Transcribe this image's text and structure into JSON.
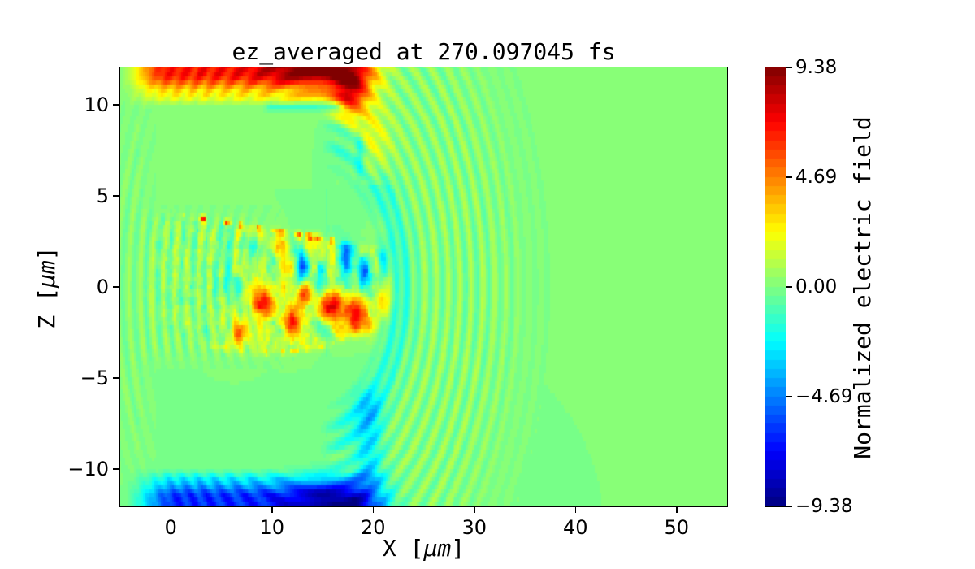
{
  "chart_data": {
    "type": "heatmap",
    "title": "ez_averaged at 270.097045 fs",
    "xlabel": "X [μm]",
    "ylabel": "Z [μm]",
    "xlabel_parts": {
      "pre": "X [",
      "unit": "μm",
      "post": "]"
    },
    "ylabel_parts": {
      "pre": "Z [",
      "unit": "μm",
      "post": "]"
    },
    "colorbar_label": "Normalized electric field",
    "colormap": "jet",
    "background_value": 0.0,
    "xlim": [
      -5,
      55
    ],
    "ylim": [
      -12.05,
      12.05
    ],
    "clim": [
      -9.38,
      9.38
    ],
    "x_ticks": [
      {
        "v": 0,
        "label": "0"
      },
      {
        "v": 10,
        "label": "10"
      },
      {
        "v": 20,
        "label": "20"
      },
      {
        "v": 30,
        "label": "30"
      },
      {
        "v": 40,
        "label": "40"
      },
      {
        "v": 50,
        "label": "50"
      }
    ],
    "y_ticks": [
      {
        "v": 10,
        "label": "10"
      },
      {
        "v": 5,
        "label": "5"
      },
      {
        "v": 0,
        "label": "0"
      },
      {
        "v": -5,
        "label": "−5"
      },
      {
        "v": -10,
        "label": "−10"
      }
    ],
    "colorbar_ticks": [
      {
        "v": 9.38,
        "label": "9.38"
      },
      {
        "v": 4.69,
        "label": "4.69"
      },
      {
        "v": 0,
        "label": "0.00"
      },
      {
        "v": -4.69,
        "label": "−4.69"
      },
      {
        "v": -9.38,
        "label": "−9.38"
      }
    ],
    "render": {
      "grid_step": 0.22,
      "quant_levels": 64,
      "colorbar_steps": 48,
      "features": {
        "wavefronts": {
          "cx": 14.5,
          "cz": 0,
          "wavelength": 1.15,
          "amp": 0.85,
          "pos_bias": 0.15,
          "fade_in": [
            5.5,
            8.5
          ],
          "fade_out": [
            16,
            23
          ],
          "quiet_x": [
            -4,
            -1.5,
            14.6,
            16.6
          ],
          "quiet_absz": [
            3.1,
            4.6,
            9.8,
            10.7
          ]
        },
        "inner_ring": {
          "r": 8.2,
          "sigma": 1.4,
          "amp": -1.5,
          "x_gate": [
            14,
            17.5
          ]
        },
        "top_lobe": {
          "edge_z": 10.15,
          "ramp_z": 11.7,
          "x_fade_in": [
            -5.5,
            -0.3
          ],
          "x_fade_out": [
            16.3,
            23
          ],
          "base": 6.6,
          "core": {
            "x": 13.5,
            "z": 12.8,
            "sx": 4.6,
            "sz": 1.8,
            "amp": 3.6
          },
          "droop": {
            "x": 17.8,
            "z": 10.6,
            "sx": 1.7,
            "sz": 1.5,
            "amp": 5.5
          },
          "tail": {
            "x": 19.8,
            "z": 7.8,
            "sx": 1.8,
            "sz": 2.2,
            "amp": 2.2
          },
          "ledge": {
            "z": 10.4,
            "sigma": 0.35,
            "amp": 1.5
          },
          "cyan_line": {
            "z": 9.9,
            "sigma": 0.22,
            "amp": -1.7,
            "x0": 9.5,
            "x1": 16.8
          },
          "cyan_wisp": {
            "x": 18.7,
            "z": 7.3,
            "sx": 0.45,
            "sz": 1.4,
            "amp": -2.2
          }
        },
        "bottom_lobe": {
          "edge_z": 10.05,
          "ramp_z": 11.6,
          "x_fade_in": [
            -5.2,
            0.8
          ],
          "x_fade_out": [
            17.8,
            23.5
          ],
          "base": -6.4,
          "core": {
            "x": 16.2,
            "z": -12.8,
            "sx": 4.4,
            "sz": 2.0,
            "amp": -4.2
          },
          "column": {
            "x": 19.6,
            "sx": 1.4,
            "amp": -2.6,
            "az": [
              4.8,
              7.0,
              10.3,
              11.3
            ]
          },
          "ledge": {
            "z": -10.45,
            "sigma": 0.4,
            "amp": -1.2
          }
        },
        "turbulence": {
          "x_fade_in": [
            -3.2,
            -0.2
          ],
          "x_fade_out": [
            19.5,
            23
          ],
          "top_line": {
            "a": 4.05,
            "b": -0.095,
            "soft": 0.35
          },
          "bottom_line": {
            "a": -2.45,
            "b": -0.24,
            "c": 0.0125,
            "soft": 0.5
          },
          "tint": {
            "amp": 0.7,
            "x_gate": [
              3,
              9
            ]
          },
          "fine_noise": {
            "scale": 2.6,
            "amp": 1.15,
            "seed": 7
          },
          "blob_noise": {
            "scale": 0.9,
            "amp": 2.6,
            "seed": 13,
            "x_gate": [
              2,
              7
            ]
          },
          "red_line": {
            "sigma": 0.17,
            "amp": 6.2,
            "x0": 1.2,
            "x1": 17.4,
            "dot_scale": 2.2,
            "dot_lo": 0.45,
            "dot_hi": 0.8,
            "seed": 23
          },
          "bottom_dots": {
            "sigma": 0.16,
            "amp": 2.6,
            "x0": 3,
            "x1": 17,
            "dot_scale": 2.0,
            "dot_lo": 0.5,
            "dot_hi": 0.85,
            "seed": 31
          },
          "seam": {
            "x": 15.45,
            "sigma": 0.2,
            "amp": -0.5,
            "z0": -4,
            "z1": 9.5
          },
          "accents": [
            {
              "x": 6.8,
              "z": -2.4,
              "sx": 1.0,
              "sz": 0.7,
              "amp": 4.2
            },
            {
              "x": 9.2,
              "z": -0.9,
              "sx": 1.3,
              "sz": 0.8,
              "amp": 5.6
            },
            {
              "x": 11.8,
              "z": -1.9,
              "sx": 0.9,
              "sz": 0.7,
              "amp": 5.2
            },
            {
              "x": 13.2,
              "z": -0.4,
              "sx": 0.8,
              "sz": 0.6,
              "amp": 4.6
            },
            {
              "x": 15.8,
              "z": -1.1,
              "sx": 1.2,
              "sz": 0.9,
              "amp": 6.2
            },
            {
              "x": 18.4,
              "z": -1.5,
              "sx": 1.1,
              "sz": 1.1,
              "amp": 6.4
            },
            {
              "x": 19.9,
              "z": -2.6,
              "sx": 0.8,
              "sz": 0.8,
              "amp": 4.8
            },
            {
              "x": 21.3,
              "z": -0.6,
              "sx": 0.9,
              "sz": 1.1,
              "amp": 4.4
            },
            {
              "x": 12.9,
              "z": 1.3,
              "sx": 0.6,
              "sz": 1.0,
              "amp": -5.8
            },
            {
              "x": 14.8,
              "z": 0.9,
              "sx": 0.5,
              "sz": 0.7,
              "amp": -4.6
            },
            {
              "x": 17.3,
              "z": 1.6,
              "sx": 0.8,
              "sz": 1.3,
              "amp": -6.6
            },
            {
              "x": 19.3,
              "z": 0.9,
              "sx": 0.7,
              "sz": 0.9,
              "amp": -5.2
            },
            {
              "x": 21.0,
              "z": 1.8,
              "sx": 0.6,
              "sz": 0.8,
              "amp": -4.0
            },
            {
              "x": 16.3,
              "z": 3.1,
              "sx": 0.5,
              "sz": 0.5,
              "amp": -3.2
            },
            {
              "x": 20.8,
              "z": 3.2,
              "sx": 1.2,
              "sz": 0.8,
              "amp": 2.8
            },
            {
              "x": 10.5,
              "z": 2.2,
              "sx": 0.8,
              "sz": 0.5,
              "amp": 2.6
            }
          ]
        }
      }
    }
  }
}
